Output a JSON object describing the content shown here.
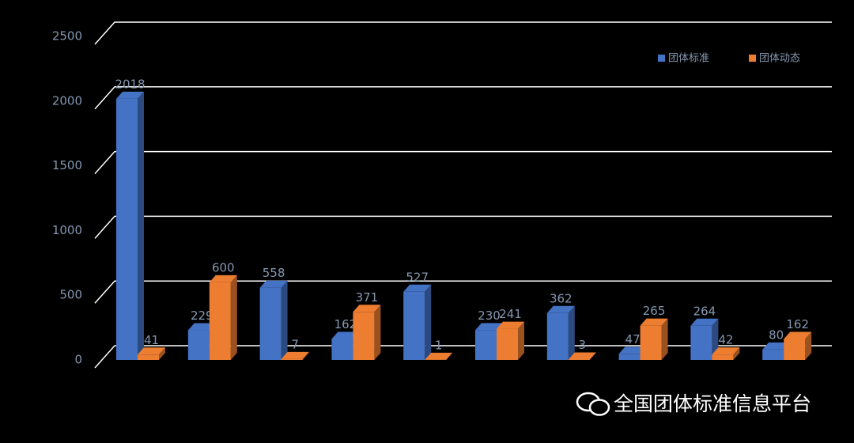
{
  "chart_data": {
    "type": "bar3d",
    "categories": [
      null,
      null,
      null,
      null,
      null,
      null,
      null,
      null,
      null,
      null
    ],
    "series": [
      {
        "name": "团体标准",
        "color": "#4472c4",
        "values": [
          2018,
          229,
          558,
          162,
          527,
          230,
          362,
          47,
          264,
          80
        ]
      },
      {
        "name": "团体动态",
        "color": "#ed7d31",
        "values": [
          41,
          600,
          7,
          371,
          1,
          241,
          3,
          265,
          42,
          162
        ]
      }
    ],
    "ylim": [
      0,
      2500
    ],
    "yticks": [
      0,
      500,
      1000,
      1500,
      2000,
      2500
    ],
    "grid": true,
    "legend": "top-right"
  },
  "watermark": "全国团体标准信息平台"
}
